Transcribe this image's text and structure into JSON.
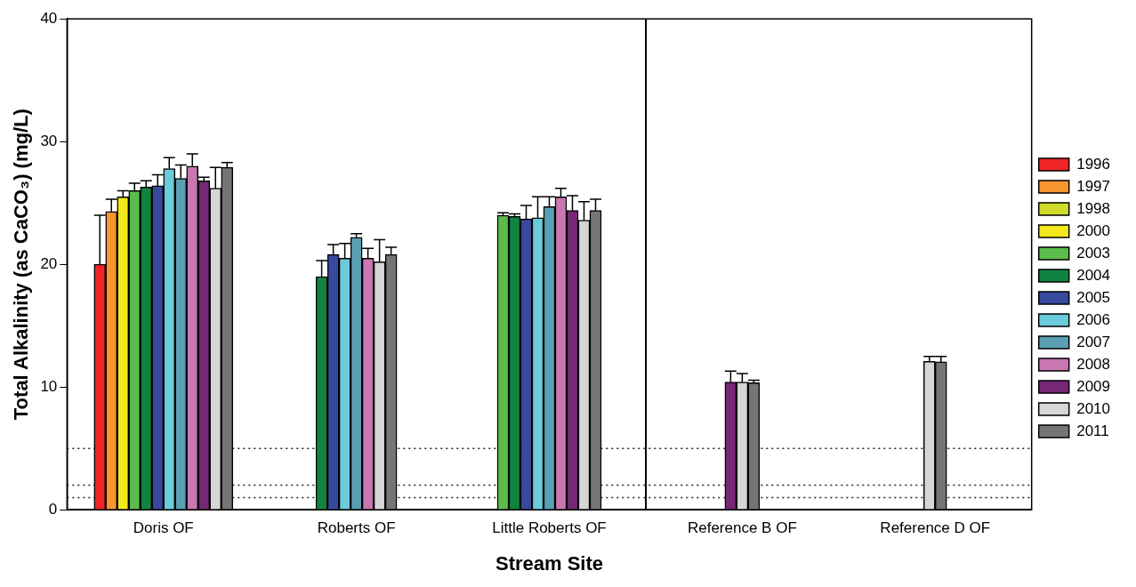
{
  "chart_data": {
    "type": "bar",
    "xlabel": "Stream Site",
    "ylabel": "Total Alkalinity (as CaCO₃) (mg/L)",
    "categories": [
      "Doris OF",
      "Roberts OF",
      "Little Roberts OF",
      "Reference B OF",
      "Reference D OF"
    ],
    "ylim": [
      0,
      40
    ],
    "yticks": [
      0,
      10,
      20,
      30,
      40
    ],
    "grid": false,
    "legend": "right",
    "series": [
      {
        "name": "1996",
        "color": "#ee2427",
        "values": [
          20.0,
          null,
          null,
          null,
          null
        ],
        "errors": [
          4.0,
          null,
          null,
          null,
          null
        ]
      },
      {
        "name": "1997",
        "color": "#f7962f",
        "values": [
          24.3,
          null,
          null,
          null,
          null
        ],
        "errors": [
          1.0,
          null,
          null,
          null,
          null
        ]
      },
      {
        "name": "1998",
        "color": "#d0dc2b",
        "values": [
          null,
          null,
          null,
          null,
          null
        ]
      },
      {
        "name": "2000",
        "color": "#f2e81c",
        "values": [
          25.5,
          null,
          null,
          null,
          null
        ],
        "errors": [
          0.5,
          null,
          null,
          null,
          null
        ]
      },
      {
        "name": "2003",
        "color": "#5bbb4b",
        "values": [
          26.0,
          null,
          24.0,
          null,
          null
        ],
        "errors": [
          0.6,
          null,
          0.2,
          null,
          null
        ]
      },
      {
        "name": "2004",
        "color": "#108341",
        "values": [
          26.3,
          19.0,
          23.9,
          null,
          null
        ],
        "errors": [
          0.5,
          1.3,
          0.2,
          null,
          null
        ]
      },
      {
        "name": "2005",
        "color": "#384a9d",
        "values": [
          26.4,
          20.8,
          23.7,
          null,
          null
        ],
        "errors": [
          0.9,
          0.8,
          1.1,
          null,
          null
        ]
      },
      {
        "name": "2006",
        "color": "#6ccbdb",
        "values": [
          27.8,
          20.5,
          23.8,
          null,
          null
        ],
        "errors": [
          0.9,
          1.2,
          1.7,
          null,
          null
        ]
      },
      {
        "name": "2007",
        "color": "#5a9fb3",
        "values": [
          27.0,
          22.2,
          24.7,
          null,
          null
        ],
        "errors": [
          1.1,
          0.3,
          0.8,
          null,
          null
        ]
      },
      {
        "name": "2008",
        "color": "#c977b1",
        "values": [
          28.0,
          20.5,
          25.5,
          null,
          null
        ],
        "errors": [
          1.0,
          0.8,
          0.7,
          null,
          null
        ]
      },
      {
        "name": "2009",
        "color": "#762776",
        "values": [
          26.8,
          null,
          24.4,
          10.4,
          null
        ],
        "errors": [
          0.3,
          null,
          1.2,
          0.9,
          null
        ]
      },
      {
        "name": "2010",
        "color": "#d6d6d6",
        "values": [
          26.2,
          20.2,
          23.6,
          10.4,
          12.1
        ],
        "errors": [
          1.7,
          1.8,
          1.5,
          0.7,
          0.4
        ]
      },
      {
        "name": "2011",
        "color": "#757575",
        "values": [
          27.9,
          20.8,
          24.4,
          10.35,
          12.05
        ],
        "errors": [
          0.4,
          0.6,
          0.9,
          0.2,
          0.45
        ]
      }
    ],
    "ref_lines": [
      {
        "axis": "y",
        "value": 5,
        "line_style": "dotted"
      },
      {
        "axis": "y",
        "value": 2,
        "line_style": "dotted"
      },
      {
        "axis": "y",
        "value": 1,
        "line_style": "dotted"
      }
    ]
  }
}
